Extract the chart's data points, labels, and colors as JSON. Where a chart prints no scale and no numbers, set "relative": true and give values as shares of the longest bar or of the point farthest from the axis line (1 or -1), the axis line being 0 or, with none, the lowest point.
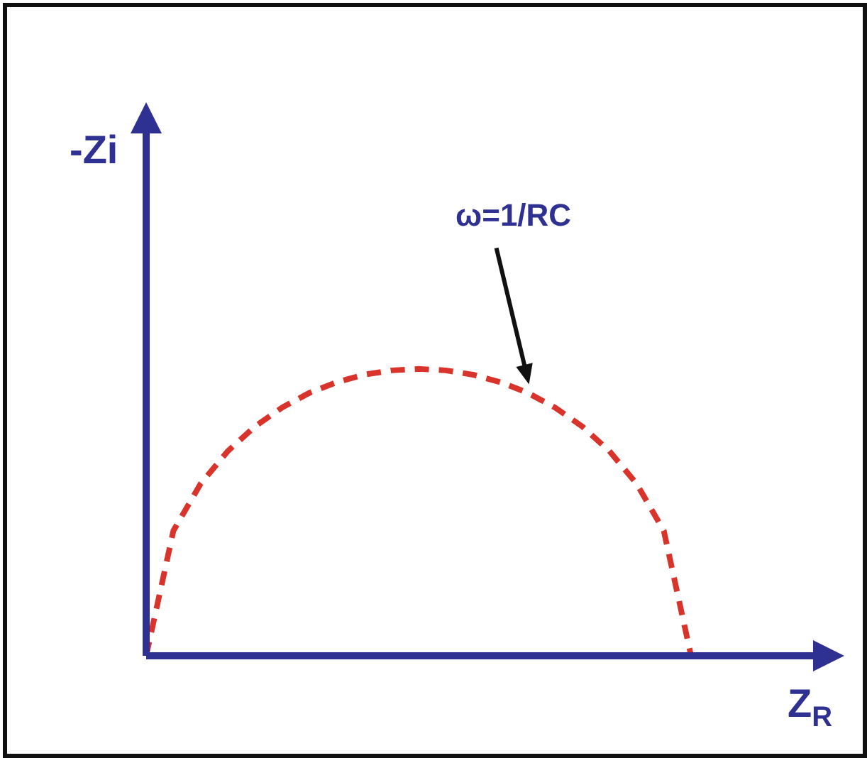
{
  "chart_data": {
    "type": "line",
    "relative": true,
    "xlabel": "Z$_{R}$",
    "ylabel": "-Zi",
    "categories": [
      null,
      null,
      null,
      null,
      null,
      null,
      null,
      null,
      null,
      null,
      null,
      null,
      null,
      null,
      null,
      null,
      null,
      null,
      null,
      null,
      null
    ],
    "series": [
      {
        "color": "#d9342b",
        "values": [
          0,
          0.436,
          0.6,
          0.714,
          0.8,
          0.866,
          0.917,
          0.954,
          0.98,
          0.995,
          1,
          0.995,
          0.98,
          0.954,
          0.917,
          0.866,
          0.8,
          0.714,
          0.6,
          0.436,
          0
        ]
      }
    ],
    "line_style": "dashed",
    "marker": "none",
    "legend": false,
    "annotations": [
      "ω=1/RC"
    ]
  }
}
